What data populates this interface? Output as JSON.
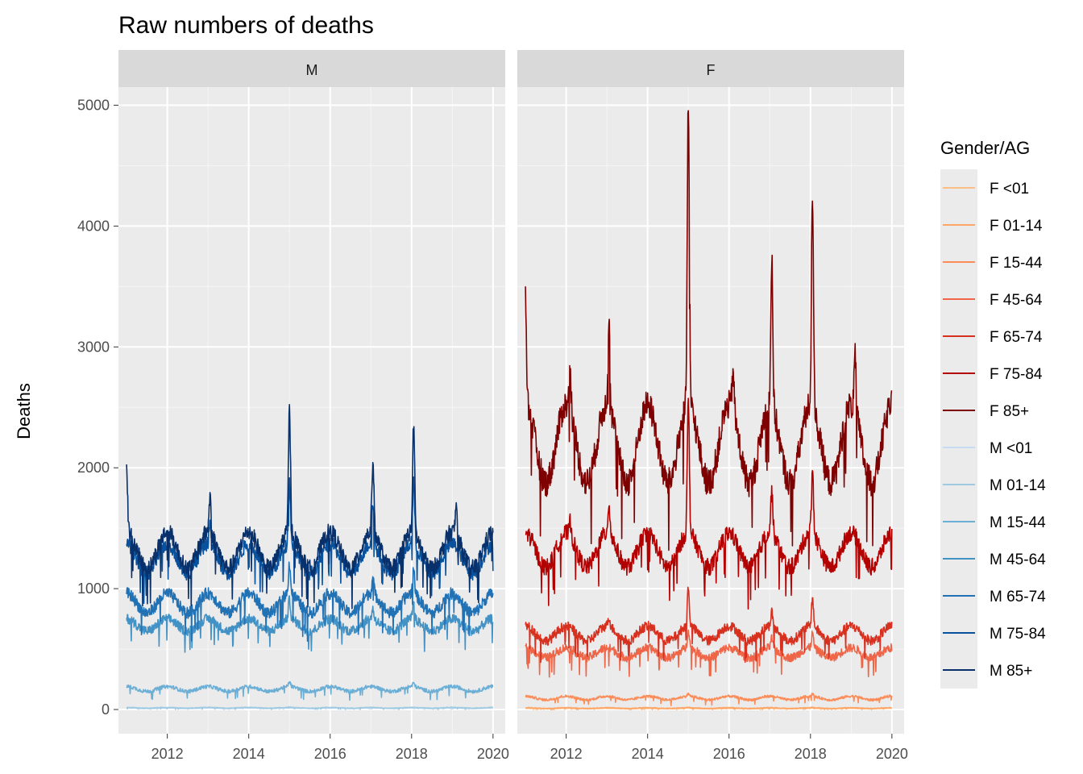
{
  "chart_data": {
    "type": "line",
    "title": "Raw numbers of deaths",
    "xlabel": "",
    "ylabel": "Deaths",
    "xlim": [
      2010.8,
      2020.3
    ],
    "ylim": [
      -200,
      5150
    ],
    "x_ticks": [
      2012,
      2014,
      2016,
      2018,
      2020
    ],
    "x_tick_labels": [
      "2012",
      "2014",
      "2016",
      "2018",
      "2020"
    ],
    "y_ticks": [
      0,
      1000,
      2000,
      3000,
      4000,
      5000
    ],
    "y_tick_labels": [
      "0",
      "1000",
      "2000",
      "3000",
      "4000",
      "5000"
    ],
    "grid": true,
    "legend_position": "right",
    "legend_title": "Gender/AG",
    "facets": [
      "M",
      "F"
    ],
    "series": [
      {
        "name": "F <01",
        "facet": "F",
        "color": "#fdbe85",
        "base": 8,
        "season": 2,
        "noise": 2,
        "peaks": [
          [
            2015.0,
            3
          ],
          [
            2018.05,
            3
          ]
        ]
      },
      {
        "name": "F 01-14",
        "facet": "F",
        "color": "#fda668",
        "base": 12,
        "season": 3,
        "noise": 3,
        "peaks": [
          [
            2015.0,
            4
          ],
          [
            2018.05,
            4
          ]
        ]
      },
      {
        "name": "F 15-44",
        "facet": "F",
        "color": "#fc8d59",
        "base": 95,
        "season": 15,
        "noise": 10,
        "peaks": [
          [
            2015.0,
            20
          ],
          [
            2018.05,
            20
          ]
        ]
      },
      {
        "name": "F 45-64",
        "facet": "F",
        "color": "#ef6548",
        "base": 470,
        "season": 40,
        "noise": 35,
        "peaks": [
          [
            2015.0,
            150
          ],
          [
            2017.05,
            80
          ],
          [
            2018.05,
            120
          ]
        ]
      },
      {
        "name": "F 65-74",
        "facet": "F",
        "color": "#d7301f",
        "base": 630,
        "season": 60,
        "noise": 40,
        "peaks": [
          [
            2015.0,
            320
          ],
          [
            2017.05,
            120
          ],
          [
            2018.05,
            230
          ],
          [
            2013.05,
            80
          ]
        ]
      },
      {
        "name": "F 75-84",
        "facet": "F",
        "color": "#b30000",
        "base": 1320,
        "season": 140,
        "noise": 70,
        "peaks": [
          [
            2015.0,
            1080
          ],
          [
            2017.05,
            360
          ],
          [
            2018.05,
            520
          ],
          [
            2013.05,
            250
          ],
          [
            2012.1,
            120
          ]
        ]
      },
      {
        "name": "F 85+",
        "facet": "F",
        "color": "#7f0000",
        "base": 2200,
        "season": 320,
        "noise": 120,
        "peaks": [
          [
            2015.0,
            2500
          ],
          [
            2017.05,
            1200
          ],
          [
            2018.05,
            1750
          ],
          [
            2013.05,
            750
          ],
          [
            2012.1,
            350
          ],
          [
            2016.1,
            350
          ],
          [
            2019.1,
            450
          ],
          [
            2011.0,
            900
          ]
        ]
      },
      {
        "name": "M <01",
        "facet": "M",
        "color": "#c6dbef",
        "base": 10,
        "season": 2,
        "noise": 2,
        "peaks": [
          [
            2015.0,
            3
          ]
        ]
      },
      {
        "name": "M 01-14",
        "facet": "M",
        "color": "#9ecae1",
        "base": 14,
        "season": 3,
        "noise": 3,
        "peaks": [
          [
            2015.0,
            4
          ]
        ]
      },
      {
        "name": "M 15-44",
        "facet": "M",
        "color": "#6baed6",
        "base": 170,
        "season": 20,
        "noise": 15,
        "peaks": [
          [
            2015.0,
            40
          ],
          [
            2018.05,
            30
          ]
        ]
      },
      {
        "name": "M 45-64",
        "facet": "M",
        "color": "#4292c6",
        "base": 700,
        "season": 50,
        "noise": 40,
        "peaks": [
          [
            2015.0,
            160
          ],
          [
            2017.05,
            80
          ],
          [
            2018.05,
            120
          ]
        ]
      },
      {
        "name": "M 65-74",
        "facet": "M",
        "color": "#2171b5",
        "base": 880,
        "season": 80,
        "noise": 50,
        "peaks": [
          [
            2015.0,
            250
          ],
          [
            2017.05,
            140
          ],
          [
            2018.05,
            220
          ]
        ]
      },
      {
        "name": "M 75-84",
        "facet": "M",
        "color": "#08519c",
        "base": 1250,
        "season": 120,
        "noise": 60,
        "peaks": [
          [
            2015.0,
            550
          ],
          [
            2017.05,
            350
          ],
          [
            2018.05,
            520
          ],
          [
            2013.05,
            160
          ]
        ]
      },
      {
        "name": "M 85+",
        "facet": "M",
        "color": "#08306b",
        "base": 1320,
        "season": 150,
        "noise": 70,
        "peaks": [
          [
            2015.0,
            1000
          ],
          [
            2017.05,
            600
          ],
          [
            2018.05,
            880
          ],
          [
            2013.05,
            300
          ],
          [
            2011.0,
            500
          ],
          [
            2019.1,
            250
          ]
        ]
      }
    ]
  }
}
